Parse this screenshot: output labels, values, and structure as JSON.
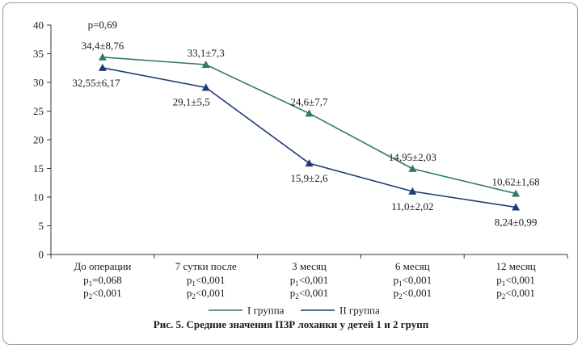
{
  "chart_data": {
    "type": "line",
    "title": "Рис. 5. Средние значения ПЗР лоханки у детей 1 и 2 групп",
    "ylim": [
      0,
      40
    ],
    "yticks": [
      "0",
      "5",
      "10",
      "15",
      "20",
      "25",
      "30",
      "35",
      "40"
    ],
    "ytick_values": [
      0,
      5,
      10,
      15,
      20,
      25,
      30,
      35,
      40
    ],
    "categories": [
      {
        "name": "До операции",
        "p1": "=0,068",
        "p2": "<0,001"
      },
      {
        "name": "7 сутки после",
        "p1": "<0,001",
        "p2": "<0,001"
      },
      {
        "name": "3 месяц",
        "p1": "<0,001",
        "p2": "<0,001"
      },
      {
        "name": "6 месяц",
        "p1": "<0,001",
        "p2": "<0,001"
      },
      {
        "name": "12 месяц",
        "p1": "<0,001",
        "p2": "<0,001"
      }
    ],
    "p_symbol": "p",
    "annotation": "p=0,69",
    "legend_position": "bottom",
    "series": [
      {
        "name": "I группа",
        "color": "#2e7d5b",
        "marker": "triangle-up",
        "values": [
          34.4,
          33.1,
          24.6,
          14.95,
          10.62
        ],
        "labels": [
          "34,4±8,76",
          "33,1±7,3",
          "24,6±7,7",
          "14,95±2,03",
          "10,62±1,68"
        ]
      },
      {
        "name": "II группа",
        "color": "#1f3a7a",
        "marker": "triangle-up",
        "values": [
          32.55,
          29.1,
          15.9,
          11.0,
          8.24
        ],
        "labels": [
          "32,55±6,17",
          "29,1±5,5",
          "15,9±2,6",
          "11,0±2,02",
          "8,24±0,99"
        ]
      }
    ]
  }
}
